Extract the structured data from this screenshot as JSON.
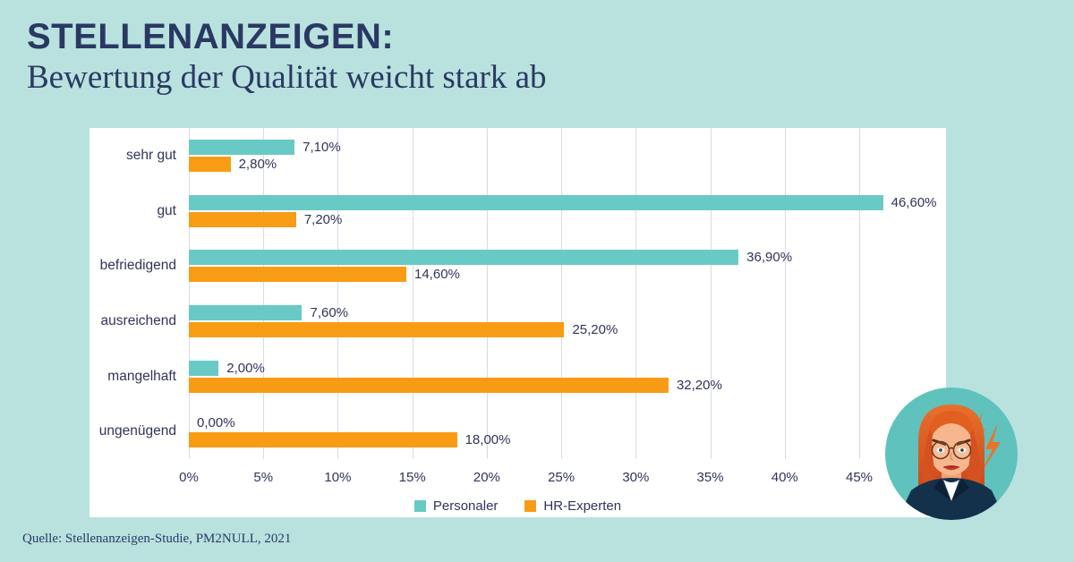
{
  "page": {
    "title_line1": "STELLENANZEIGEN:",
    "title_line2": "Bewertung der Qualität weicht stark ab",
    "source": "Quelle: Stellenanzeigen-Studie, PM2NULL, 2021"
  },
  "colors": {
    "background": "#b9e2df",
    "title": "#2a3963",
    "chart_text": "#31335e",
    "panel": "#ffffff",
    "gridline": "#d9dbe9",
    "personaler": "#69cac5",
    "hr_experten": "#f99c15",
    "avatar_circle": "#5fc2bd"
  },
  "chart_data": {
    "type": "bar",
    "orientation": "horizontal",
    "title": "STELLENANZEIGEN: Bewertung der Qualität weicht stark ab",
    "categories": [
      "sehr gut",
      "gut",
      "befriedigend",
      "ausreichend",
      "mangelhaft",
      "ungenügend"
    ],
    "series": [
      {
        "name": "Personaler",
        "color": "#69cac5",
        "values": [
          7.1,
          46.6,
          36.9,
          7.6,
          2.0,
          0.0
        ],
        "labels": [
          "7,10%",
          "46,60%",
          "36,90%",
          "7,60%",
          "2,00%",
          "0,00%"
        ]
      },
      {
        "name": "HR-Experten",
        "color": "#f99c15",
        "values": [
          2.8,
          7.2,
          14.6,
          25.2,
          32.2,
          18.0
        ],
        "labels": [
          "2,80%",
          "7,20%",
          "14,60%",
          "25,20%",
          "32,20%",
          "18,00%"
        ]
      }
    ],
    "x_tick_values": [
      0,
      5,
      10,
      15,
      20,
      25,
      30,
      35,
      40,
      45
    ],
    "x_tick_labels": [
      "0%",
      "5%",
      "10%",
      "15%",
      "20%",
      "25%",
      "30%",
      "35%",
      "40%",
      "45%"
    ],
    "xlim": [
      0,
      45
    ],
    "grid": true,
    "legend_position": "bottom"
  }
}
